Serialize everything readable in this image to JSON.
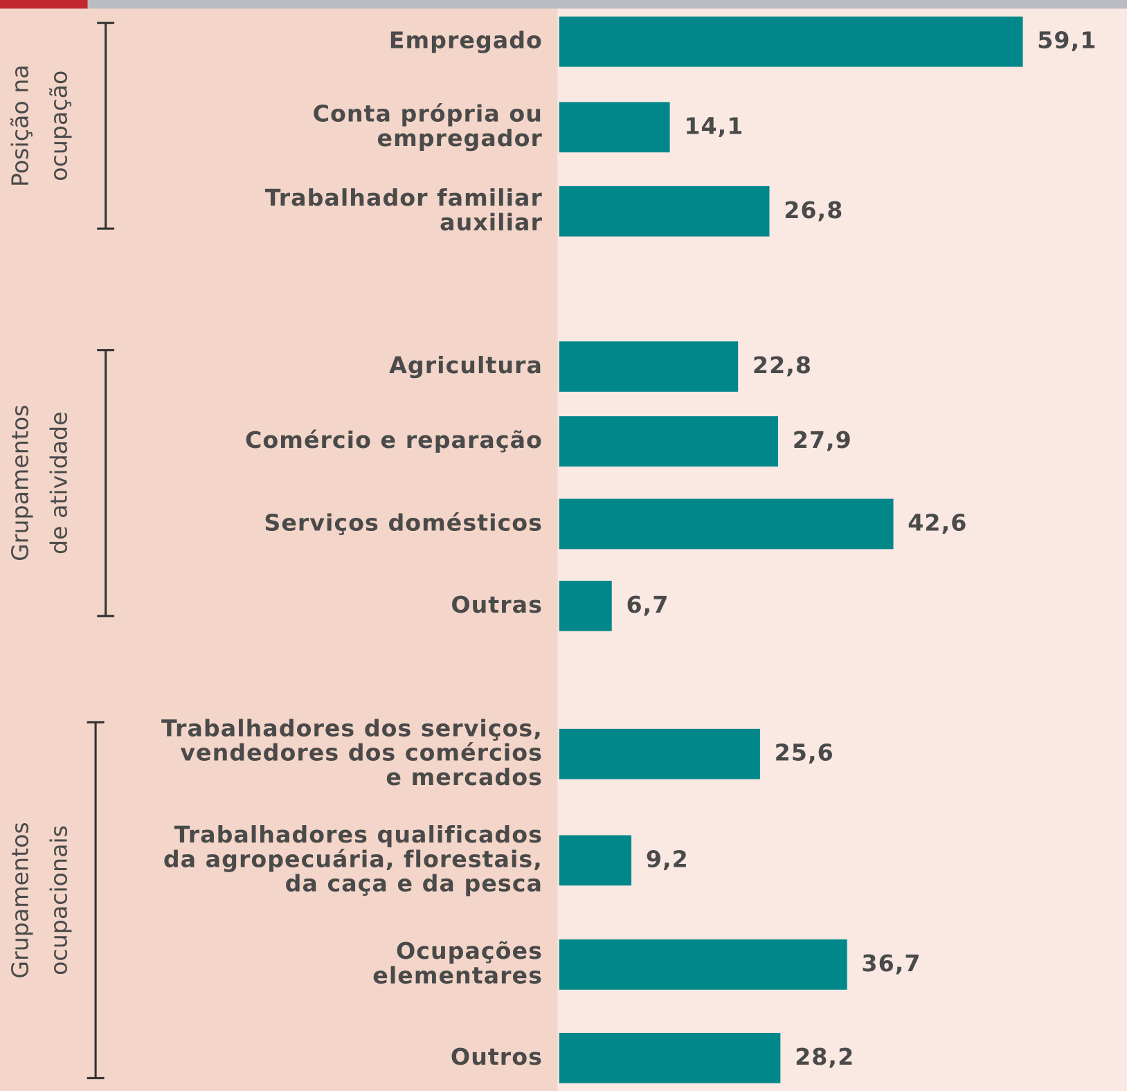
{
  "chart_data": {
    "type": "bar",
    "color": "#00878a",
    "groups": [
      {
        "name": [
          "Posição na",
          "ocupação"
        ],
        "categories": [
          [
            "Empregado"
          ],
          [
            "Conta própria ou",
            "empregador"
          ],
          [
            "Trabalhador familiar",
            "auxiliar"
          ]
        ],
        "values": [
          59.1,
          14.1,
          26.8
        ],
        "value_labels": [
          "59,1",
          "14,1",
          "26,8"
        ]
      },
      {
        "name": [
          "Grupamentos",
          "de atividade"
        ],
        "categories": [
          [
            "Agricultura"
          ],
          [
            "Comércio e reparação"
          ],
          [
            "Serviços domésticos"
          ],
          [
            "Outras"
          ]
        ],
        "values": [
          22.8,
          27.9,
          42.6,
          6.7
        ],
        "value_labels": [
          "22,8",
          "27,9",
          "42,6",
          "6,7"
        ]
      },
      {
        "name": [
          "Grupamentos",
          "ocupacionais"
        ],
        "categories": [
          [
            "Trabalhadores dos serviços,",
            "vendedores dos comércios",
            "e mercados"
          ],
          [
            "Trabalhadores qualificados",
            "da agropecuária, florestais,",
            "da caça e da pesca"
          ],
          [
            "Ocupações",
            "elementares"
          ],
          [
            "Outros"
          ]
        ],
        "values": [
          25.6,
          9.2,
          36.7,
          28.2
        ],
        "value_labels": [
          "25,6",
          "9,2",
          "36,7",
          "28,2"
        ]
      }
    ]
  }
}
